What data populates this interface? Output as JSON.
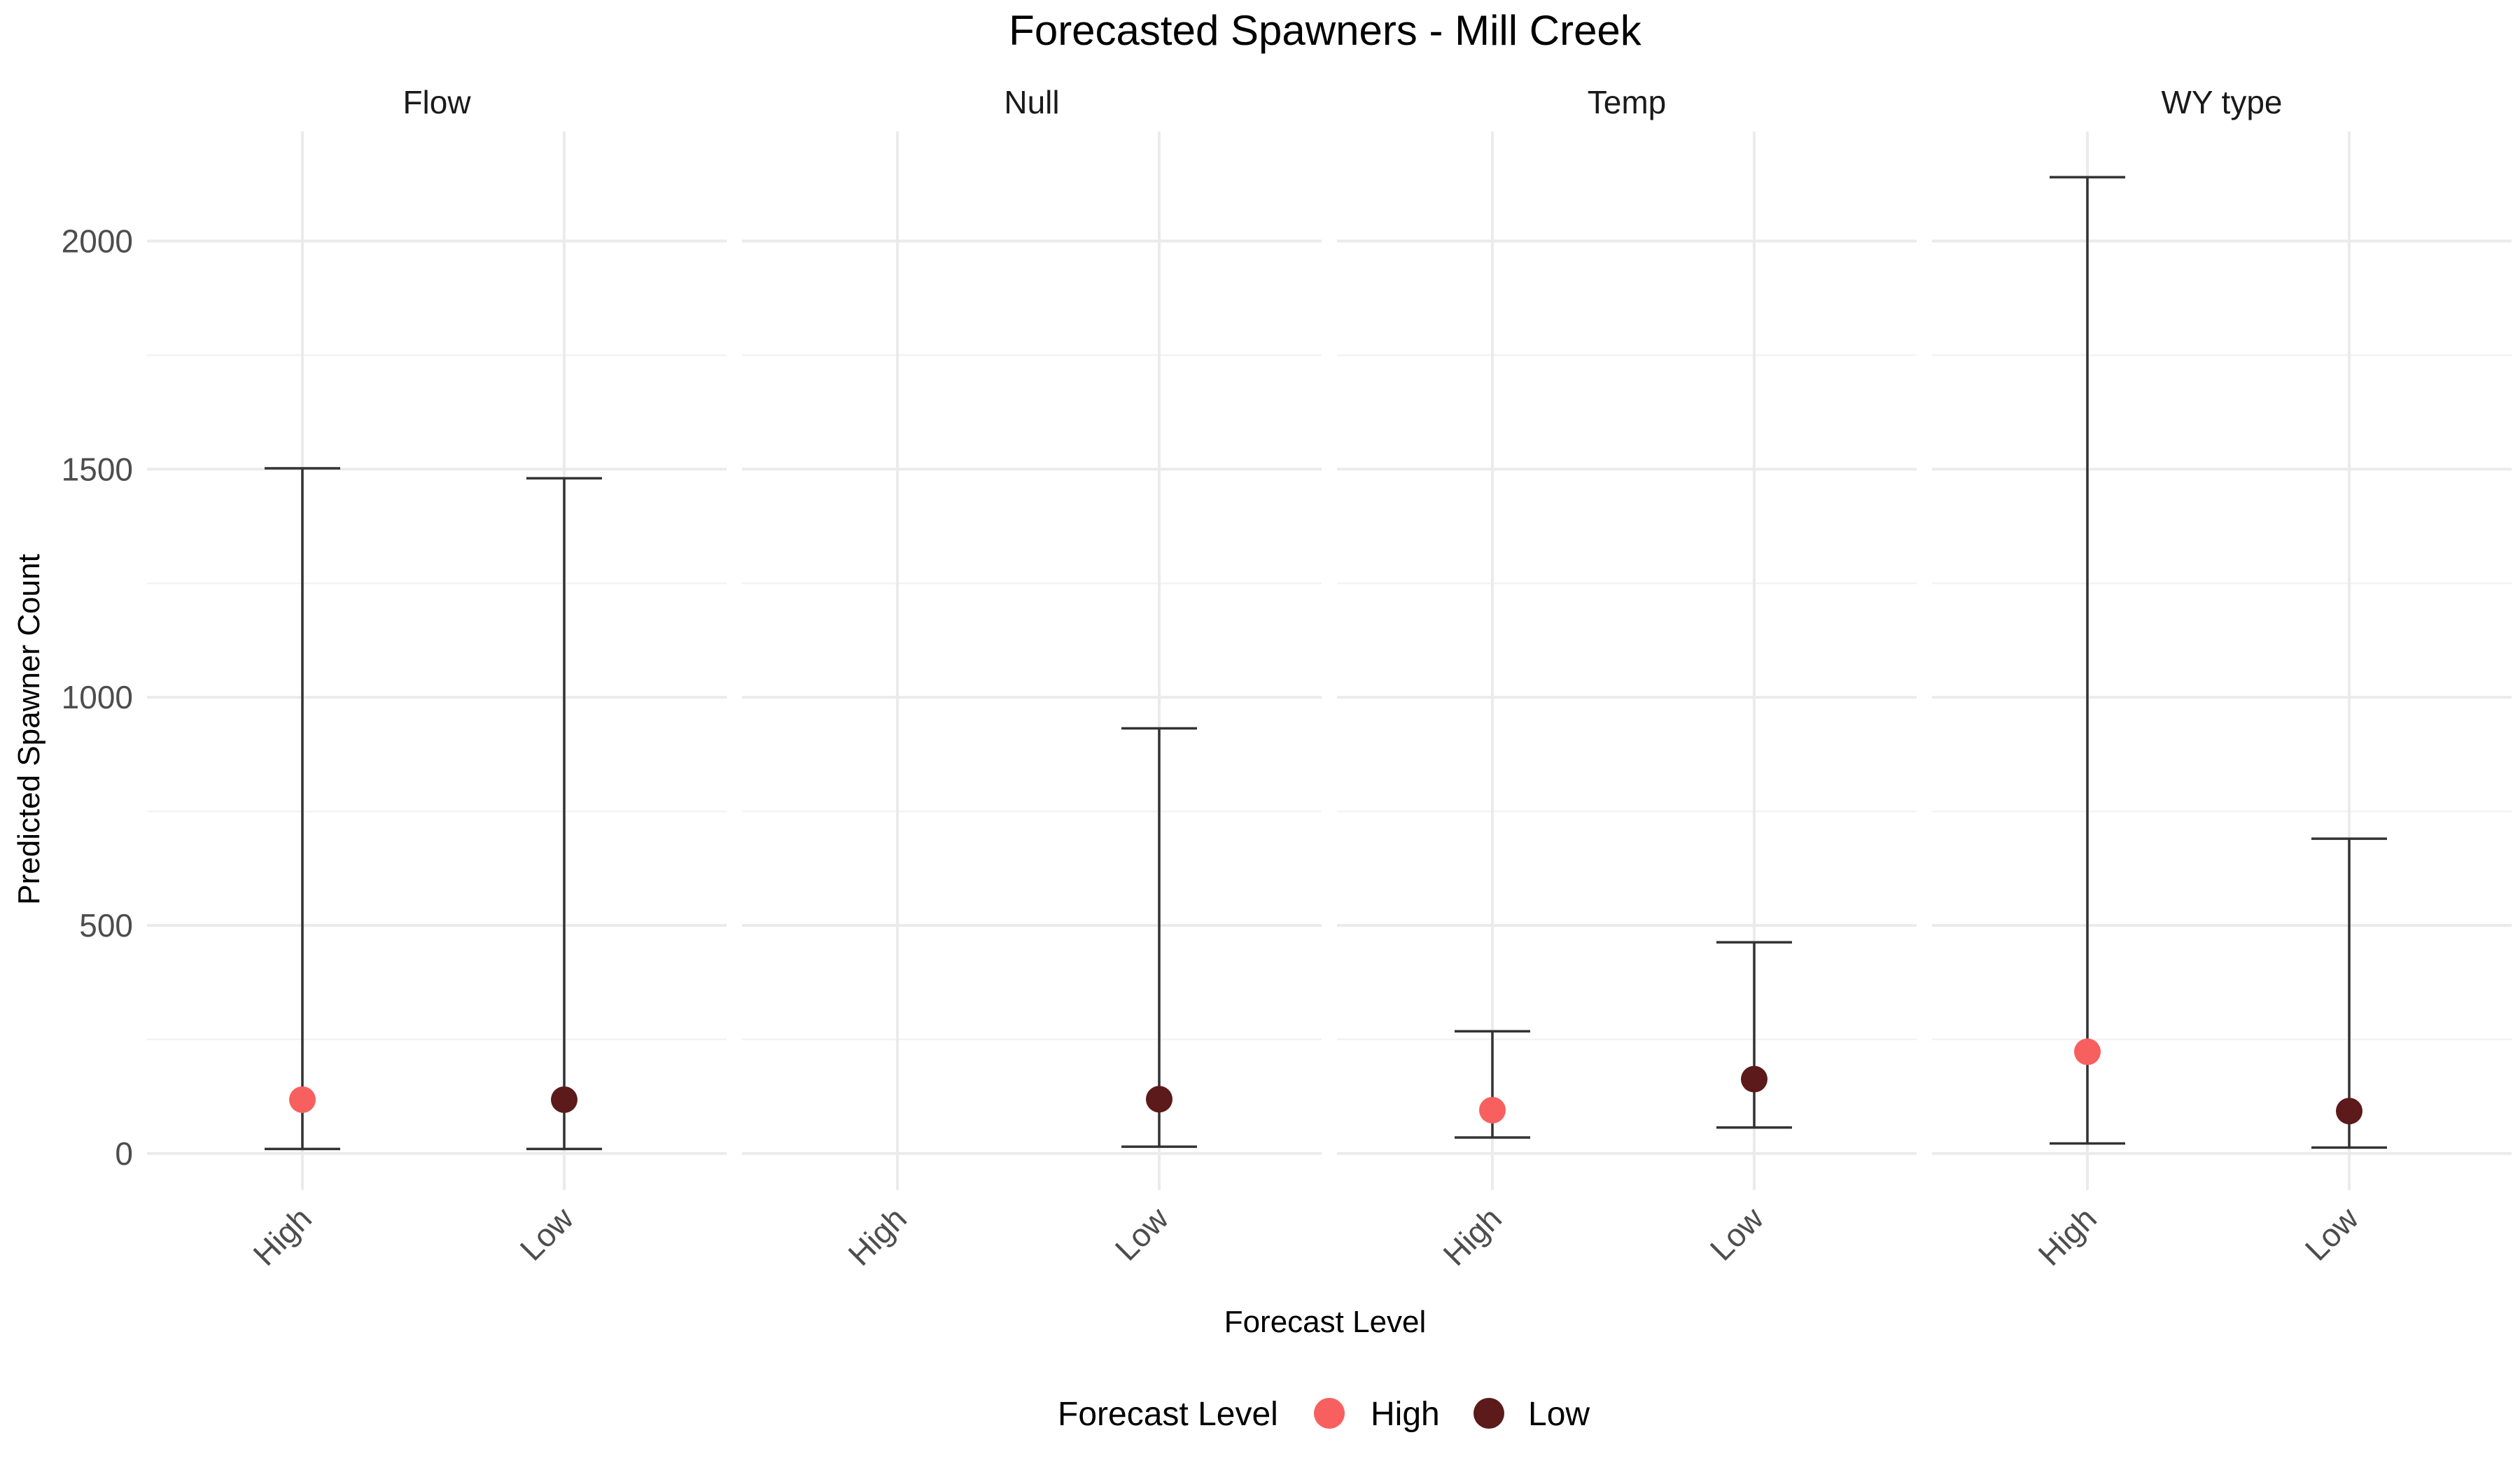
{
  "chart_data": {
    "type": "errorbar-facet",
    "title": "Forecasted Spawners - Mill Creek",
    "xlabel": "Forecast Level",
    "ylabel": "Predicted Spawner Count",
    "categories": [
      "High",
      "Low"
    ],
    "y_ticks": [
      0,
      500,
      1000,
      1500,
      2000
    ],
    "ylim": [
      -80,
      2240
    ],
    "grid": true,
    "colors": {
      "High": "#f8605f",
      "Low": "#5c1a1b"
    },
    "facets": [
      {
        "name": "Flow",
        "points": [
          {
            "level": "High",
            "value": 118,
            "lower": 10,
            "upper": 1502
          },
          {
            "level": "Low",
            "value": 118,
            "lower": 10,
            "upper": 1480
          }
        ]
      },
      {
        "name": "Null",
        "points": [
          {
            "level": "Low",
            "value": 119,
            "lower": 15,
            "upper": 932
          }
        ]
      },
      {
        "name": "Temp",
        "points": [
          {
            "level": "High",
            "value": 95,
            "lower": 35,
            "upper": 268
          },
          {
            "level": "Low",
            "value": 163,
            "lower": 57,
            "upper": 463
          }
        ]
      },
      {
        "name": "WY type",
        "points": [
          {
            "level": "High",
            "value": 223,
            "lower": 22,
            "upper": 2140
          },
          {
            "level": "Low",
            "value": 93,
            "lower": 13,
            "upper": 690
          }
        ]
      }
    ],
    "legend": {
      "title": "Forecast Level",
      "position": "bottom",
      "entries": [
        "High",
        "Low"
      ]
    }
  }
}
